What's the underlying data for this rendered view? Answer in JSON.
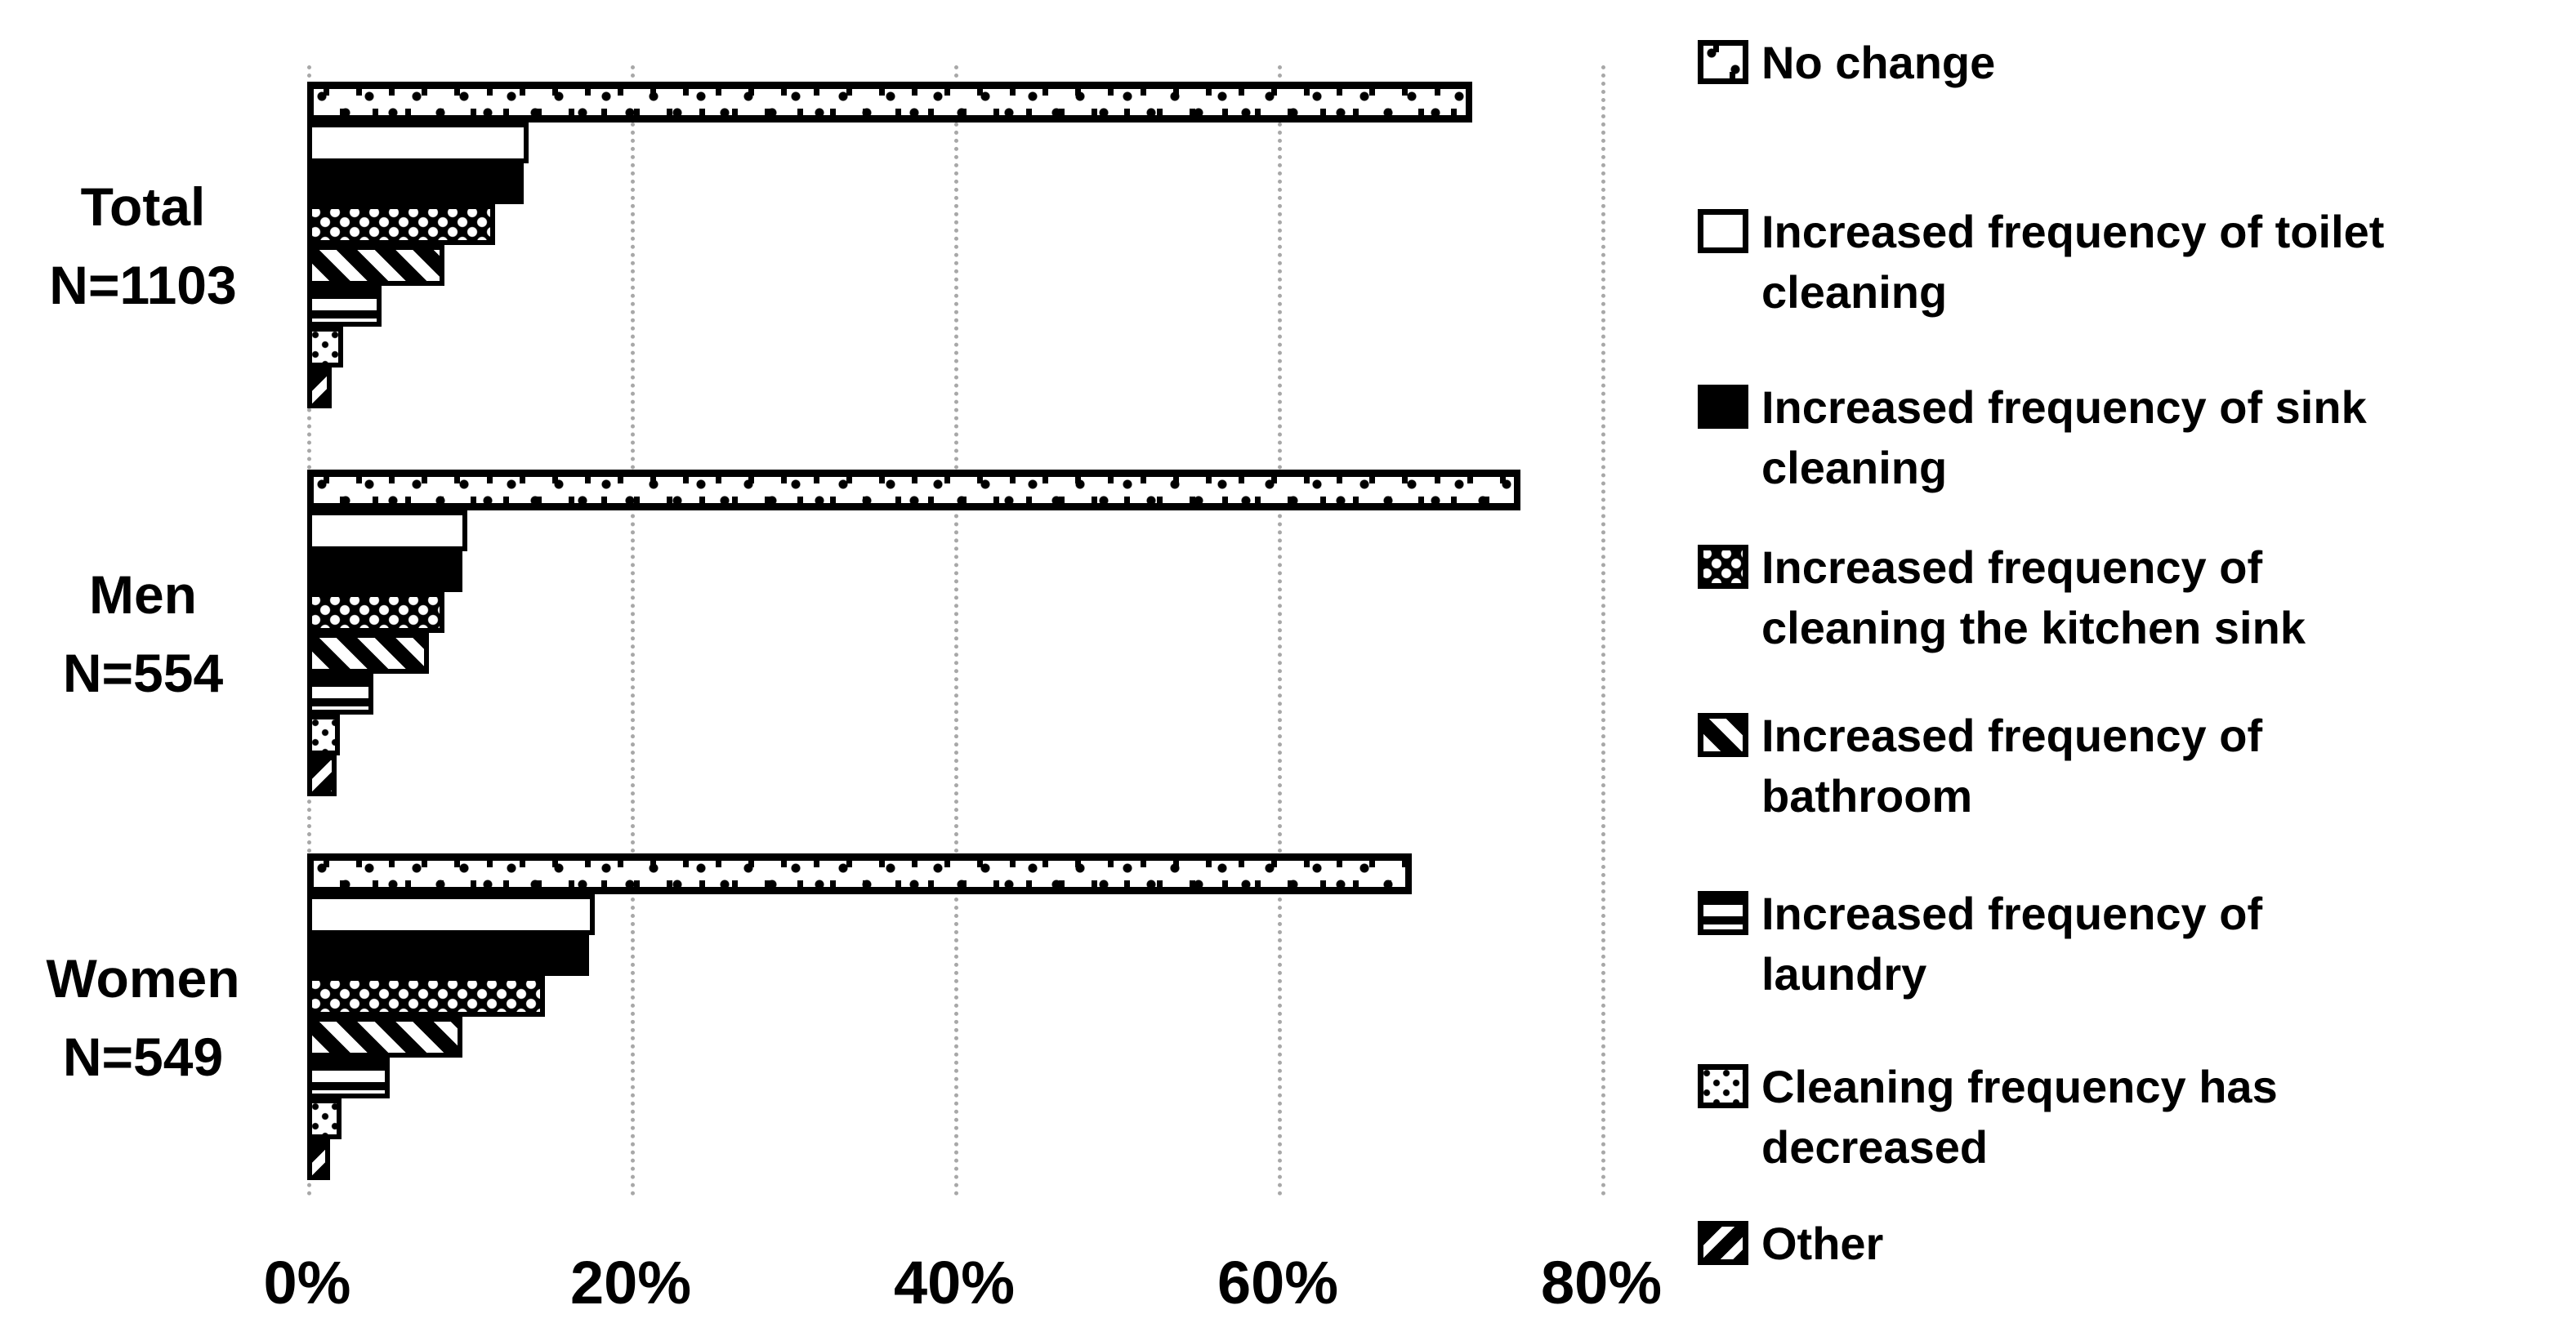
{
  "chart_data": {
    "type": "bar",
    "orientation": "horizontal",
    "title": "",
    "xlabel": "",
    "ylabel": "",
    "x_axis": {
      "ticks": [
        "0%",
        "20%",
        "40%",
        "60%",
        "80%"
      ],
      "tick_values": [
        0,
        20,
        40,
        60,
        80
      ],
      "xlim": [
        0,
        84
      ],
      "grid": true,
      "gridline_style": "dotted"
    },
    "categories": [
      "No change",
      "Increased frequency of toilet cleaning",
      "Increased frequency of sink cleaning",
      "Increased frequency of cleaning the kitchen sink",
      "Increased frequency of bathroom",
      "Increased frequency of laundry",
      "Cleaning frequency has decreased",
      "Other"
    ],
    "groups": [
      {
        "label": "Total",
        "n_label": "N=1103",
        "values": [
          72.0,
          13.7,
          13.4,
          11.6,
          8.5,
          4.6,
          2.2,
          1.5
        ]
      },
      {
        "label": "Men",
        "n_label": "N=554",
        "values": [
          75.0,
          9.9,
          9.6,
          8.5,
          7.5,
          4.1,
          2.0,
          1.8
        ]
      },
      {
        "label": "Women",
        "n_label": "N=549",
        "values": [
          68.3,
          17.8,
          17.4,
          14.7,
          9.6,
          5.1,
          2.1,
          1.4
        ]
      }
    ],
    "legend": {
      "position": "right",
      "items": [
        {
          "label": "No change",
          "lines": [
            "No change"
          ],
          "pattern": "dots-sparse"
        },
        {
          "label": "Increased frequency of toilet cleaning",
          "lines": [
            "Increased frequency of toilet",
            "cleaning"
          ],
          "pattern": "plain-white"
        },
        {
          "label": "Increased frequency of sink cleaning",
          "lines": [
            "Increased frequency of sink",
            "cleaning"
          ],
          "pattern": "solid-black"
        },
        {
          "label": "Increased frequency of cleaning the kitchen sink",
          "lines": [
            "Increased frequency of",
            "cleaning the kitchen sink"
          ],
          "pattern": "weave-dark"
        },
        {
          "label": "Increased frequency of bathroom",
          "lines": [
            "Increased frequency of",
            "bathroom"
          ],
          "pattern": "diagonal-down"
        },
        {
          "label": "Increased frequency of laundry",
          "lines": [
            "Increased frequency of",
            "laundry"
          ],
          "pattern": "horizontal-lines"
        },
        {
          "label": "Cleaning frequency has decreased",
          "lines": [
            "Cleaning frequency has",
            "decreased"
          ],
          "pattern": "dots-fine"
        },
        {
          "label": "Other",
          "lines": [
            "Other"
          ],
          "pattern": "diagonal-up-bold"
        }
      ]
    },
    "colors": {
      "foreground": "#000000",
      "background": "#ffffff",
      "gridline": "#a8a8a8"
    }
  }
}
